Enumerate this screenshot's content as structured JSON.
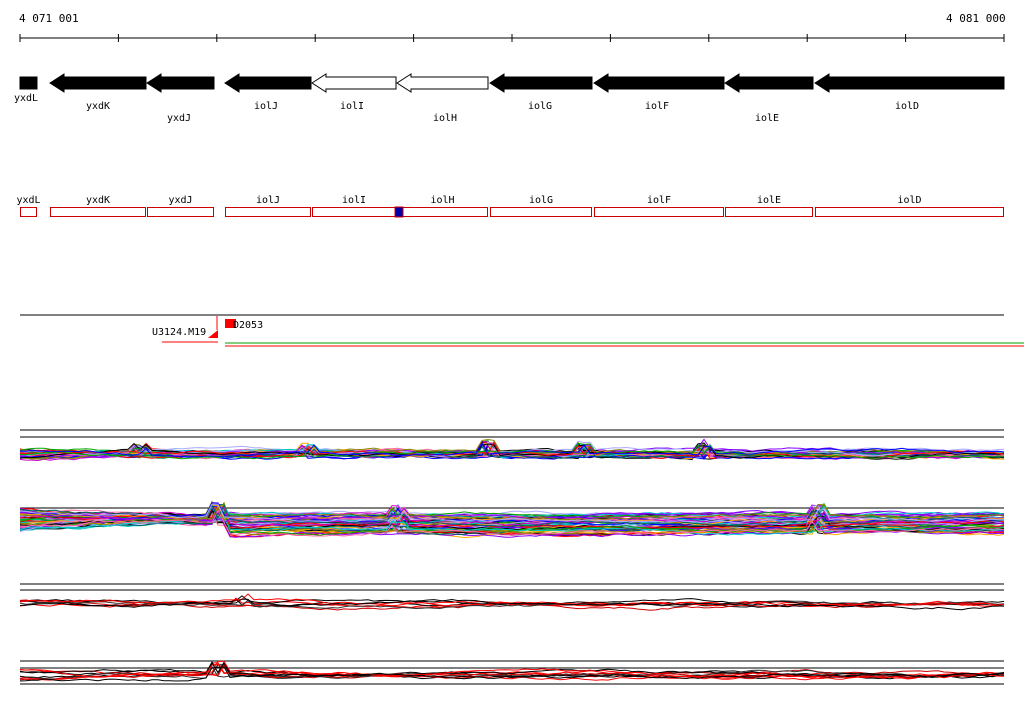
{
  "ruler": {
    "start_label": "4 071 001",
    "end_label": "4 081 000"
  },
  "genes": [
    {
      "name": "yxdL",
      "strand": "-",
      "fill": "black",
      "row": 1
    },
    {
      "name": "yxdK",
      "strand": "-",
      "fill": "black",
      "row": 2
    },
    {
      "name": "yxdJ",
      "strand": "-",
      "fill": "black",
      "row": 3
    },
    {
      "name": "iolJ",
      "strand": "-",
      "fill": "black",
      "row": 2
    },
    {
      "name": "iolI",
      "strand": "-",
      "fill": "white",
      "row": 2
    },
    {
      "name": "iolH",
      "strand": "-",
      "fill": "white",
      "row": 3
    },
    {
      "name": "iolG",
      "strand": "-",
      "fill": "black",
      "row": 2
    },
    {
      "name": "iolF",
      "strand": "-",
      "fill": "black",
      "row": 2
    },
    {
      "name": "iolE",
      "strand": "-",
      "fill": "black",
      "row": 3
    },
    {
      "name": "iolD",
      "strand": "-",
      "fill": "black",
      "row": 2
    }
  ],
  "gene_boxes": [
    "yxdL",
    "yxdK",
    "yxdJ",
    "iolJ",
    "iolI",
    "iolH",
    "iolG",
    "iolF",
    "iolE",
    "iolD"
  ],
  "features": {
    "left_label": "U3124.M19",
    "right_label": "D2053"
  },
  "colors": {
    "gene_fill": "#000000",
    "gene_box": "#cc0000",
    "marker": "#0000aa",
    "feature": "#ff0000",
    "feature_line_green": "#00a000",
    "profile_palette": [
      "#000000",
      "#ff0000",
      "#00aa00",
      "#0000ff",
      "#cc00cc",
      "#00cccc",
      "#ffaa00",
      "#8800ff",
      "#888800",
      "#ff66aa",
      "#006666",
      "#aaaaff"
    ]
  }
}
